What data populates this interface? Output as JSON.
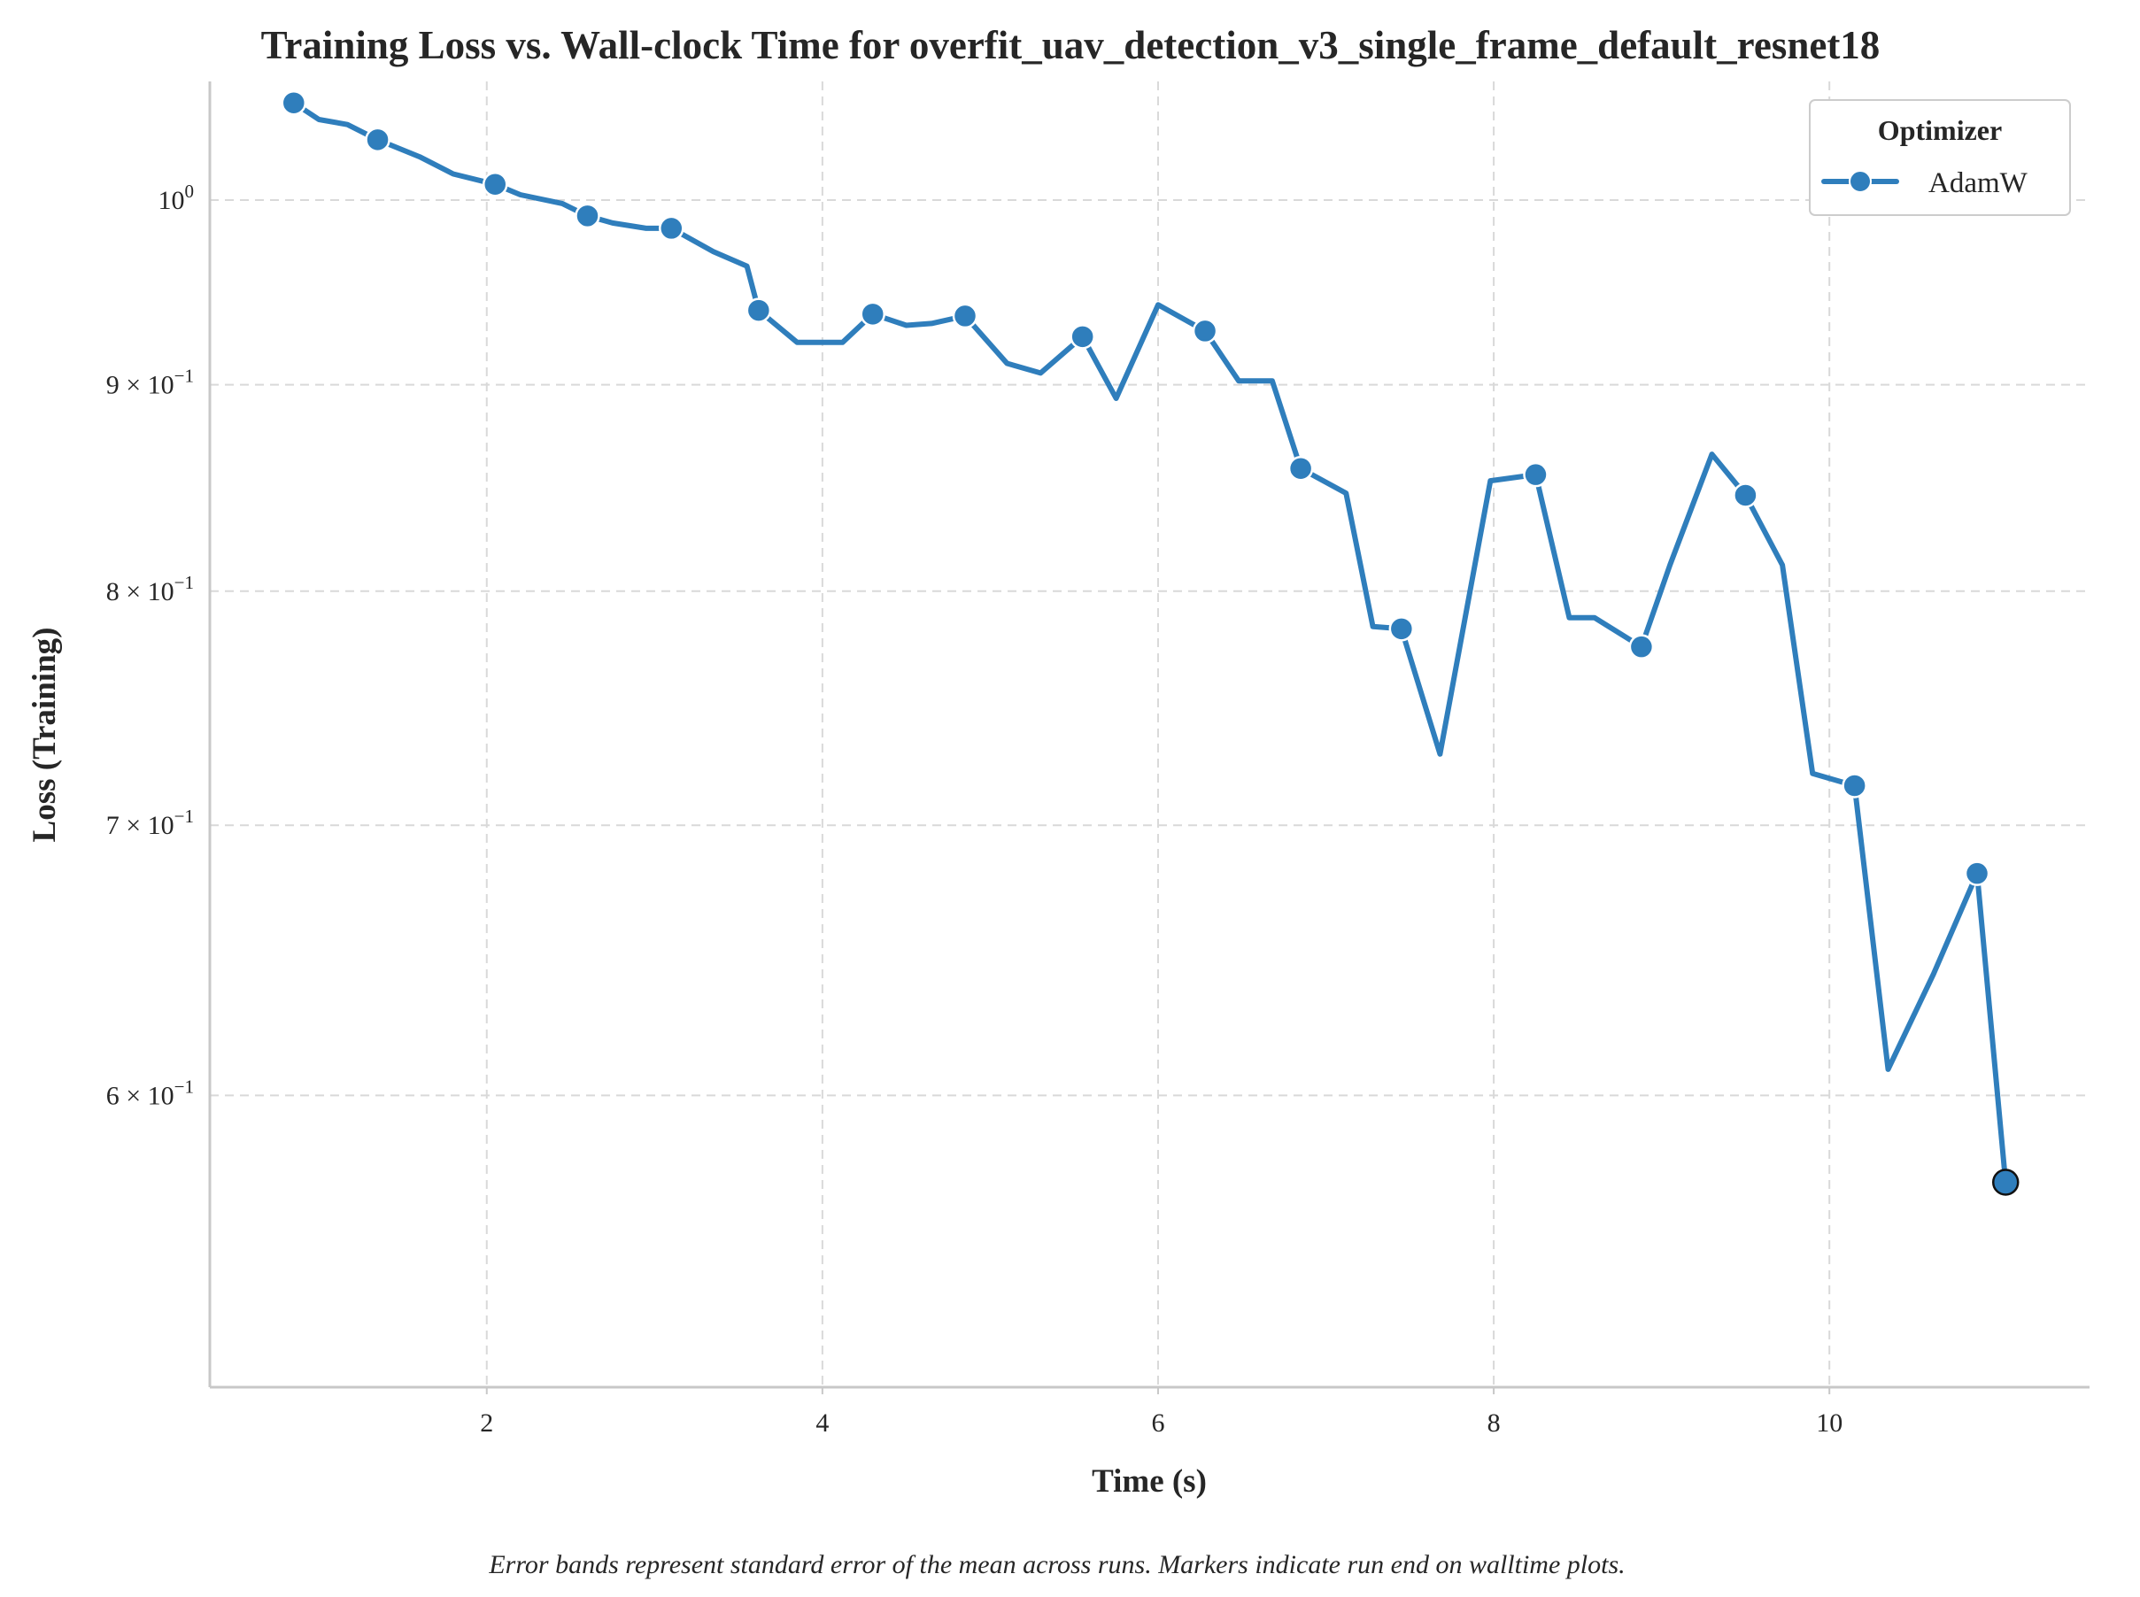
{
  "chart_data": {
    "type": "line",
    "title": "Training Loss vs. Wall-clock Time for overfit_uav_detection_v3_single_frame_default_resnet18",
    "xlabel": "Time (s)",
    "ylabel": "Loss (Training)",
    "caption": "Error bands represent standard error of the mean across runs. Markers indicate run end on walltime plots.",
    "xlim": [
      0.35,
      11.55
    ],
    "ylim": [
      0.508,
      1.07
    ],
    "yscale": "log",
    "grid": true,
    "legend": {
      "title": "Optimizer",
      "placement": "top-right"
    },
    "x_ticks": [
      {
        "value": 2,
        "label": "2"
      },
      {
        "value": 4,
        "label": "4"
      },
      {
        "value": 6,
        "label": "6"
      },
      {
        "value": 8,
        "label": "8"
      },
      {
        "value": 10,
        "label": "10"
      }
    ],
    "y_ticks": [
      {
        "value": 1.0,
        "base": "10",
        "exp": "0"
      },
      {
        "value": 0.9,
        "base": "9 × 10",
        "exp": "−1"
      },
      {
        "value": 0.8,
        "base": "8 × 10",
        "exp": "−1"
      },
      {
        "value": 0.7,
        "base": "7 × 10",
        "exp": "−1"
      },
      {
        "value": 0.6,
        "base": "6 × 10",
        "exp": "−1"
      }
    ],
    "series": [
      {
        "name": "AdamW",
        "color": "#2f7ebc",
        "x": [
          0.85,
          1.0,
          1.17,
          1.35,
          1.6,
          1.8,
          2.05,
          2.2,
          2.45,
          2.6,
          2.75,
          2.95,
          3.1,
          3.35,
          3.55,
          3.62,
          3.85,
          4.12,
          4.3,
          4.5,
          4.65,
          4.85,
          5.1,
          5.3,
          5.55,
          5.75,
          6.0,
          6.28,
          6.48,
          6.68,
          6.85,
          7.12,
          7.28,
          7.45,
          7.68,
          7.98,
          8.25,
          8.45,
          8.6,
          8.88,
          9.05,
          9.3,
          9.5,
          9.72,
          9.9,
          10.15,
          10.35,
          10.62,
          10.88,
          11.05
        ],
        "y": [
          1.057,
          1.047,
          1.044,
          1.035,
          1.025,
          1.015,
          1.009,
          1.003,
          0.998,
          0.991,
          0.987,
          0.984,
          0.984,
          0.971,
          0.963,
          0.939,
          0.922,
          0.922,
          0.937,
          0.931,
          0.932,
          0.936,
          0.911,
          0.906,
          0.925,
          0.893,
          0.942,
          0.928,
          0.902,
          0.902,
          0.858,
          0.846,
          0.784,
          0.783,
          0.729,
          0.852,
          0.855,
          0.788,
          0.788,
          0.775,
          0.812,
          0.865,
          0.845,
          0.812,
          0.721,
          0.716,
          0.609,
          0.643,
          0.681,
          0.571
        ],
        "markers_x": [
          0.85,
          1.35,
          2.05,
          2.6,
          3.1,
          3.62,
          4.3,
          4.85,
          5.55,
          6.28,
          6.85,
          7.45,
          8.25,
          8.88,
          9.5,
          10.15,
          10.88
        ],
        "markers_y": [
          1.057,
          1.035,
          1.009,
          0.991,
          0.984,
          0.939,
          0.937,
          0.936,
          0.925,
          0.928,
          0.858,
          0.783,
          0.855,
          0.775,
          0.845,
          0.716,
          0.681
        ],
        "end_marker": {
          "x": 11.05,
          "y": 0.571
        }
      }
    ]
  }
}
